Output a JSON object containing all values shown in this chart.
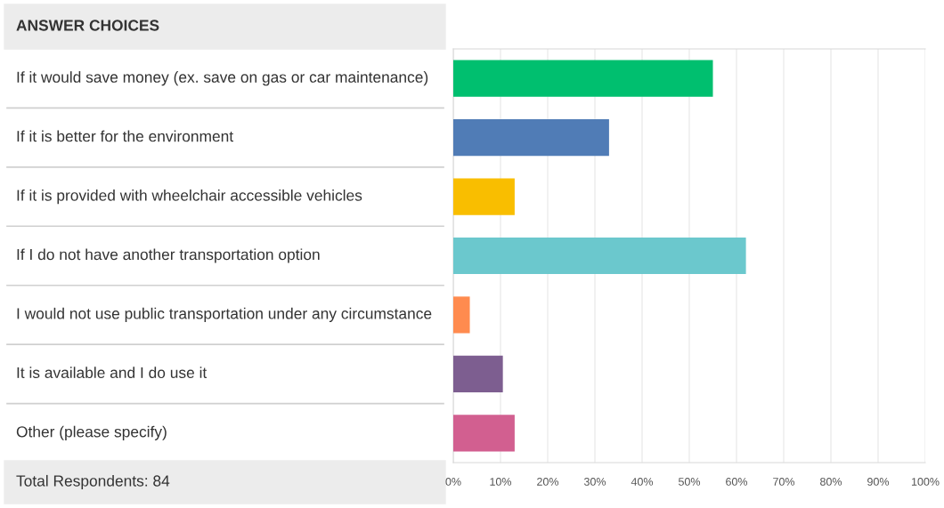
{
  "chart_data": {
    "type": "bar",
    "orientation": "horizontal",
    "ylabel": "ANSWER CHOICES",
    "categories": [
      "If it would save money (ex. save on gas or car maintenance)",
      "If it is better for the environment",
      "If it is provided with wheelchair accessible vehicles",
      "If I do not have another transportation option",
      "I would not use public transportation under any circumstance",
      "It is available and I do use it",
      "Other (please specify)"
    ],
    "values": [
      55,
      33,
      13,
      62,
      3.5,
      10.5,
      13
    ],
    "colors": [
      "#00bf6f",
      "#507cb6",
      "#f9be00",
      "#6bc8cd",
      "#ff8b4f",
      "#7d5e90",
      "#d25f90"
    ],
    "xlim": [
      0,
      100
    ],
    "xticks": [
      {
        "value": 0,
        "label": "0%"
      },
      {
        "value": 10,
        "label": "10%"
      },
      {
        "value": 20,
        "label": "20%"
      },
      {
        "value": 30,
        "label": "30%"
      },
      {
        "value": 40,
        "label": "40%"
      },
      {
        "value": 50,
        "label": "50%"
      },
      {
        "value": 60,
        "label": "60%"
      },
      {
        "value": 70,
        "label": "70%"
      },
      {
        "value": 80,
        "label": "80%"
      },
      {
        "value": 90,
        "label": "90%"
      },
      {
        "value": 100,
        "label": "100%"
      }
    ],
    "grid": "x",
    "annotations": [
      "Total Respondents: 84"
    ]
  }
}
